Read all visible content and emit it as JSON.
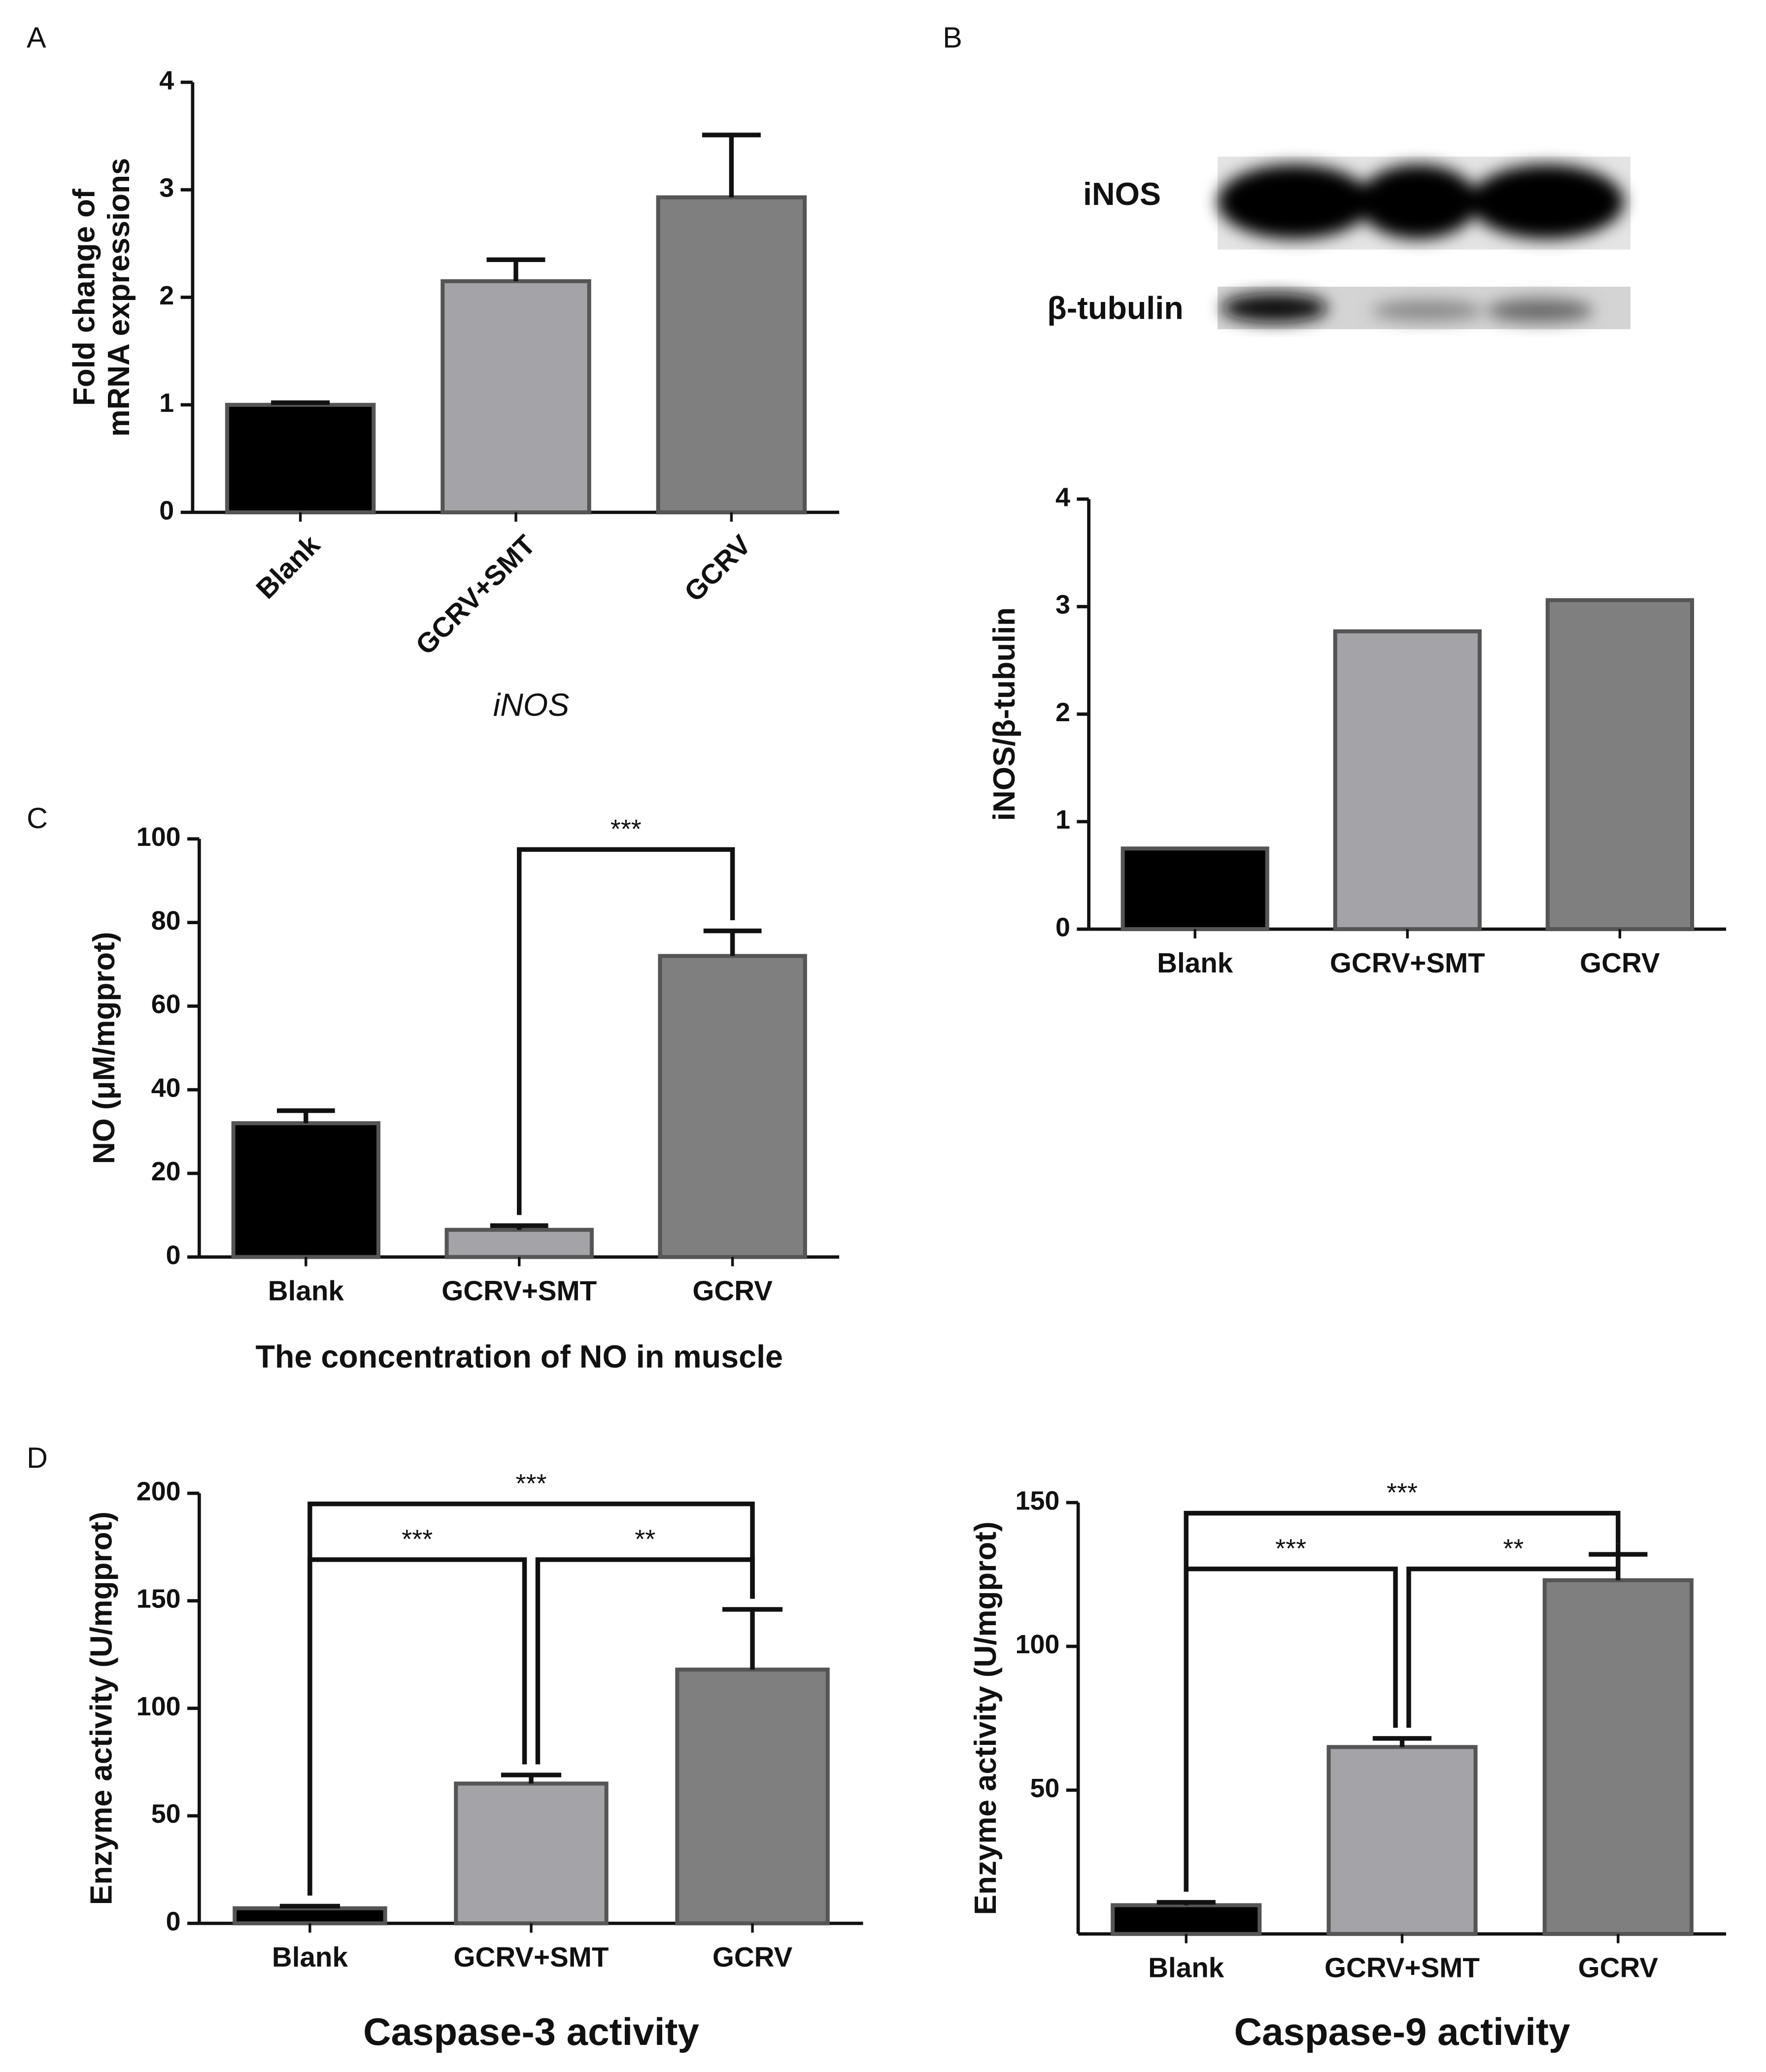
{
  "chart_data": [
    {
      "type": "bar",
      "panel": "A",
      "ylabel": [
        "Fold change of",
        "mRNA expressions"
      ],
      "xlabel": "iNOS",
      "categories": [
        "Blank",
        "GCRV+SMT",
        "GCRV"
      ],
      "values": [
        1.0,
        2.15,
        2.93
      ],
      "errors": [
        0.02,
        0.2,
        0.58
      ],
      "colors": [
        "#000000",
        "#a4a4a8",
        "#7f7f7f"
      ],
      "ylim": [
        0,
        4
      ],
      "yticks": [
        0,
        1,
        2,
        3,
        4
      ]
    },
    {
      "type": "bar",
      "panel": "B",
      "blot_labels": [
        "iNOS",
        "β-tubulin"
      ],
      "ylabel": [
        "iNOS/β-tubulin"
      ],
      "categories": [
        "Blank",
        "GCRV+SMT",
        "GCRV"
      ],
      "values": [
        0.75,
        2.77,
        3.06
      ],
      "colors": [
        "#000000",
        "#a4a4a8",
        "#7f7f7f"
      ],
      "ylim": [
        0,
        4
      ],
      "yticks": [
        0,
        1,
        2,
        3,
        4
      ]
    },
    {
      "type": "bar",
      "panel": "C",
      "ylabel": [
        "NO (μM/mgprot)"
      ],
      "xlabel": "The concentration of NO in muscle",
      "categories": [
        "Blank",
        "GCRV+SMT",
        "GCRV"
      ],
      "values": [
        32,
        6.5,
        72
      ],
      "errors": [
        3,
        1,
        6
      ],
      "colors": [
        "#000000",
        "#a4a4a8",
        "#7f7f7f"
      ],
      "ylim": [
        0,
        100
      ],
      "yticks": [
        0,
        20,
        40,
        60,
        80,
        100
      ],
      "significance": [
        {
          "from": "GCRV+SMT",
          "to": "GCRV",
          "label": "***"
        }
      ]
    },
    {
      "type": "bar",
      "panel": "D",
      "ylabel": [
        "Enzyme activity (U/mgprot)"
      ],
      "xlabel": "Caspase-3 activity",
      "categories": [
        "Blank",
        "GCRV+SMT",
        "GCRV"
      ],
      "values": [
        7,
        65,
        118
      ],
      "errors": [
        1,
        4,
        28
      ],
      "colors": [
        "#000000",
        "#a4a4a8",
        "#7f7f7f"
      ],
      "ylim": [
        0,
        200
      ],
      "yticks": [
        0,
        50,
        100,
        150,
        200
      ],
      "significance": [
        {
          "from": "Blank",
          "to": "GCRV",
          "label": "***"
        },
        {
          "from": "Blank",
          "to": "GCRV+SMT",
          "label": "***"
        },
        {
          "from": "GCRV+SMT",
          "to": "GCRV",
          "label": "**"
        }
      ]
    },
    {
      "type": "bar",
      "ylabel": [
        "Enzyme activity (U/mgprot)"
      ],
      "xlabel": "Caspase-9 activity",
      "categories": [
        "Blank",
        "GCRV+SMT",
        "GCRV"
      ],
      "values": [
        10,
        65,
        123
      ],
      "errors": [
        1,
        3,
        9
      ],
      "colors": [
        "#000000",
        "#a4a4a8",
        "#7f7f7f"
      ],
      "ylim": [
        0,
        150
      ],
      "yticks": [
        50,
        100,
        150
      ],
      "significance": [
        {
          "from": "Blank",
          "to": "GCRV",
          "label": "***"
        },
        {
          "from": "Blank",
          "to": "GCRV+SMT",
          "label": "***"
        },
        {
          "from": "GCRV+SMT",
          "to": "GCRV",
          "label": "**"
        }
      ]
    }
  ]
}
